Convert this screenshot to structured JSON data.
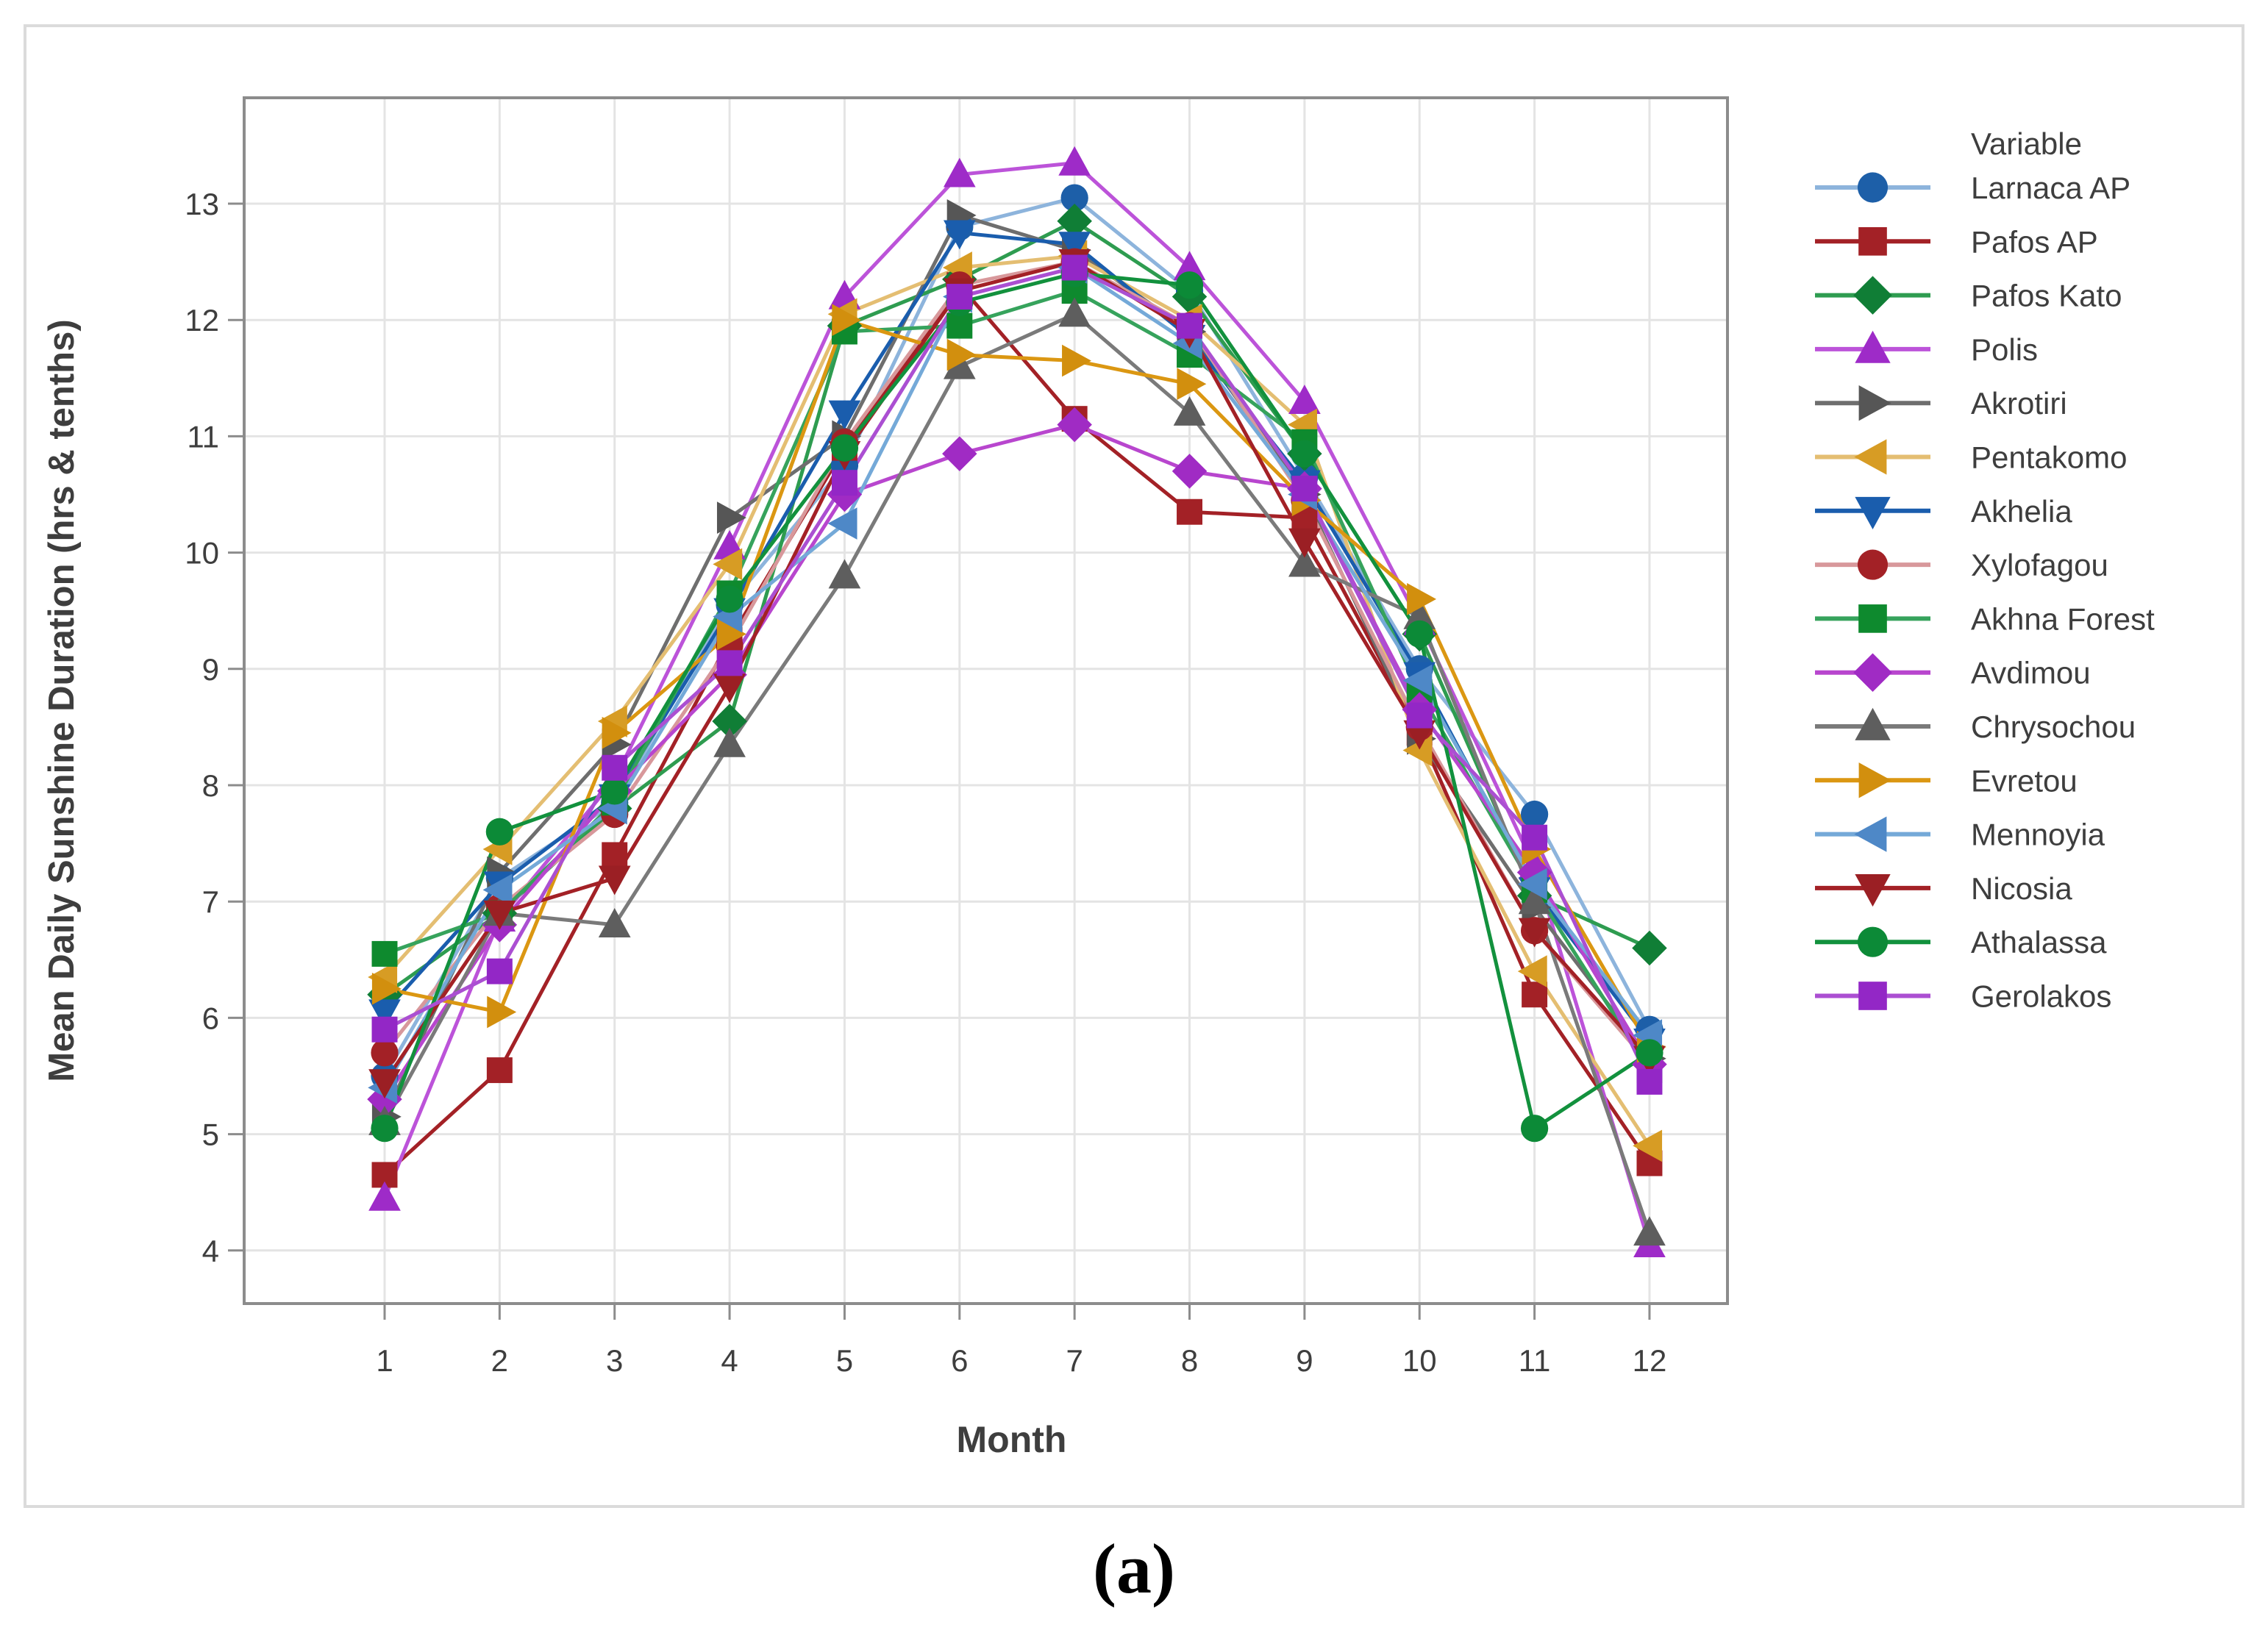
{
  "figure": {
    "caption": "(a)",
    "chart_data": {
      "type": "line",
      "title": "",
      "xlabel": "Month",
      "ylabel": "Mean Daily Sunshine Duration (hrs & tenths)",
      "x": [
        1,
        2,
        3,
        4,
        5,
        6,
        7,
        8,
        9,
        10,
        11,
        12
      ],
      "x_tick_labels": [
        "1",
        "2",
        "3",
        "4",
        "5",
        "6",
        "7",
        "8",
        "9",
        "10",
        "11",
        "12"
      ],
      "y_ticks": [
        4,
        5,
        6,
        7,
        8,
        9,
        10,
        11,
        12,
        13
      ],
      "xlim": [
        -0.22,
        12.68
      ],
      "ylim": [
        3.54,
        13.91
      ],
      "grid": true,
      "legend": {
        "title": "Variable",
        "position": "right"
      },
      "axis_color": "#8c8c8c",
      "grid_color": "#e4e4e4",
      "text_color": "#3e3e3e",
      "series": [
        {
          "name": "Larnaca AP",
          "marker": "circle",
          "line_color": "#8db4dc",
          "marker_color": "#1d5fa8",
          "values": [
            5.5,
            7.2,
            7.85,
            9.55,
            10.75,
            12.8,
            13.05,
            12.25,
            10.65,
            9.0,
            7.75,
            5.9
          ]
        },
        {
          "name": "Pafos AP",
          "marker": "square",
          "line_color": "#a32126",
          "marker_color": "#a32126",
          "values": [
            4.65,
            5.55,
            7.4,
            9.25,
            10.9,
            12.3,
            11.15,
            10.35,
            10.3,
            8.45,
            6.2,
            4.75
          ]
        },
        {
          "name": "Pafos Kato",
          "marker": "diamond",
          "line_color": "#2e9c50",
          "marker_color": "#107e36",
          "values": [
            6.2,
            6.9,
            7.8,
            8.55,
            11.95,
            12.35,
            12.85,
            12.2,
            10.85,
            9.3,
            7.05,
            6.6
          ]
        },
        {
          "name": "Polis",
          "marker": "triangle-up",
          "line_color": "#bc53d9",
          "marker_color": "#9e2bc8",
          "values": [
            4.45,
            6.85,
            8.05,
            10.05,
            12.2,
            13.25,
            13.35,
            12.45,
            11.3,
            9.4,
            7.3,
            4.05
          ]
        },
        {
          "name": "Akrotiri",
          "marker": "triangle-right",
          "line_color": "#6e6e6e",
          "marker_color": "#565656",
          "values": [
            5.15,
            7.25,
            8.35,
            10.3,
            11.0,
            12.9,
            12.6,
            11.9,
            10.5,
            8.4,
            6.95,
            5.65
          ]
        },
        {
          "name": "Pentakomo",
          "marker": "triangle-left",
          "line_color": "#e4be72",
          "marker_color": "#d79c24",
          "values": [
            6.35,
            7.45,
            8.55,
            9.9,
            12.05,
            12.45,
            12.55,
            12.0,
            11.1,
            8.3,
            6.4,
            4.9
          ]
        },
        {
          "name": "Akhelia",
          "marker": "triangle-down",
          "line_color": "#1a5dad",
          "marker_color": "#1a5dad",
          "values": [
            6.05,
            7.15,
            7.9,
            9.5,
            11.2,
            12.75,
            12.65,
            11.85,
            10.6,
            8.95,
            7.1,
            5.8
          ]
        },
        {
          "name": "Xylofagou",
          "marker": "circle",
          "line_color": "#d8989b",
          "marker_color": "#a32126",
          "values": [
            5.7,
            6.95,
            7.75,
            9.2,
            10.95,
            12.3,
            12.5,
            11.95,
            10.45,
            8.5,
            6.75,
            5.6
          ]
        },
        {
          "name": "Akhna Forest",
          "marker": "square",
          "line_color": "#36a35c",
          "marker_color": "#0e8a2e",
          "values": [
            6.55,
            6.9,
            7.85,
            9.65,
            11.9,
            11.95,
            12.25,
            11.7,
            10.95,
            8.8,
            7.1,
            5.55
          ]
        },
        {
          "name": "Avdimou",
          "marker": "diamond",
          "line_color": "#b846ce",
          "marker_color": "#a02bc4",
          "values": [
            5.3,
            6.8,
            7.95,
            8.95,
            10.5,
            10.85,
            11.1,
            10.7,
            10.55,
            8.65,
            7.25,
            5.6
          ]
        },
        {
          "name": "Chrysochou",
          "marker": "triangle-up",
          "line_color": "#7a7a7a",
          "marker_color": "#5e5e5e",
          "values": [
            5.1,
            6.9,
            6.8,
            8.35,
            9.8,
            11.6,
            12.05,
            11.2,
            9.9,
            9.45,
            7.0,
            4.15
          ]
        },
        {
          "name": "Evretou",
          "marker": "triangle-right",
          "line_color": "#db9712",
          "marker_color": "#d28f0e",
          "values": [
            6.25,
            6.05,
            8.45,
            9.3,
            12.0,
            11.7,
            11.65,
            11.45,
            10.45,
            9.6,
            7.45,
            5.75
          ]
        },
        {
          "name": "Mennoyia",
          "marker": "triangle-left",
          "line_color": "#74a9d8",
          "marker_color": "#4e88c7",
          "values": [
            5.4,
            7.1,
            7.8,
            9.45,
            10.25,
            12.2,
            12.45,
            11.8,
            10.5,
            8.9,
            7.15,
            5.85
          ]
        },
        {
          "name": "Nicosia",
          "marker": "triangle-down",
          "line_color": "#a32126",
          "marker_color": "#9b1f24",
          "values": [
            5.45,
            6.9,
            7.2,
            8.85,
            10.85,
            12.25,
            12.5,
            11.9,
            10.1,
            8.45,
            6.75,
            5.65
          ]
        },
        {
          "name": "Athalassa",
          "marker": "circle",
          "line_color": "#12913d",
          "marker_color": "#0c8a37",
          "values": [
            5.05,
            7.6,
            7.95,
            9.6,
            10.9,
            12.15,
            12.4,
            12.3,
            10.85,
            9.3,
            5.05,
            5.7
          ]
        },
        {
          "name": "Gerolakos",
          "marker": "square",
          "line_color": "#ab4fd2",
          "marker_color": "#9327c6",
          "values": [
            5.9,
            6.4,
            8.15,
            9.05,
            10.6,
            12.2,
            12.45,
            11.95,
            10.55,
            8.6,
            7.55,
            5.45
          ]
        }
      ]
    }
  }
}
